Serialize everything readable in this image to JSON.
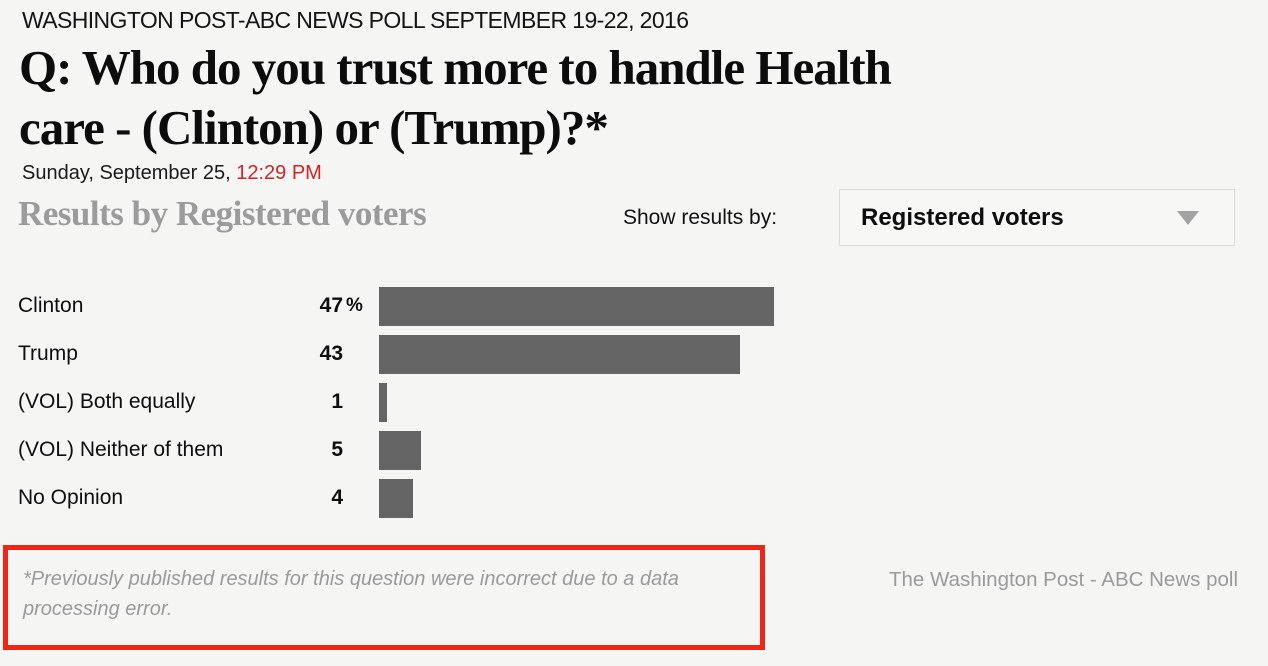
{
  "kicker": "WASHINGTON POST-ABC NEWS POLL SEPTEMBER 19-22, 2016",
  "title_line1": "Q: Who do you trust more to handle Health",
  "title_line2": "care - (Clinton) or (Trump)?*",
  "dateline": {
    "date": "Sunday, September 25, ",
    "time": "12:29 PM"
  },
  "section_heading": "Results by Registered voters",
  "filter": {
    "label": "Show results by:",
    "selected": "Registered voters"
  },
  "chart_data": {
    "type": "bar",
    "orientation": "horizontal",
    "title": "Q: Who do you trust more to handle Health care - (Clinton) or (Trump)?*",
    "subtitle": "Results by Registered voters",
    "categories": [
      "Clinton",
      "Trump",
      "(VOL) Both equally",
      "(VOL) Neither of them",
      "No Opinion"
    ],
    "values": [
      47,
      43,
      1,
      5,
      4
    ],
    "value_suffixes": [
      "%",
      "",
      "",
      "",
      ""
    ],
    "xlabel": "",
    "ylabel": "",
    "xlim": [
      0,
      100
    ],
    "grid": false,
    "legend": false,
    "bar_color": "#656565"
  },
  "footnote": "*Previously published results for this question were incorrect due to a data processing error.",
  "credit": "The Washington Post - ABC News poll",
  "colors": {
    "background": "#f5f5f4",
    "accent_time_red": "#cd2427",
    "footnote_border_red": "#ee2517",
    "bar_gray": "#656565",
    "muted_gray": "#9a9a9a"
  }
}
